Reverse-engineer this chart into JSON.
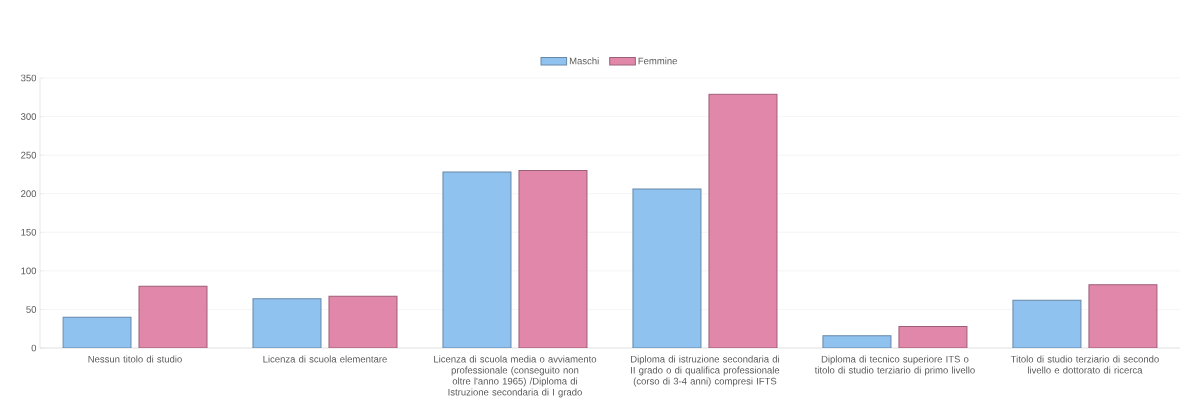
{
  "chart_data": {
    "type": "bar",
    "categories": [
      "Nessun titolo di studio",
      "Licenza di scuola elementare",
      "Licenza di scuola media o avviamento professionale (conseguito non oltre l'anno 1965) /Diploma di Istruzione secondaria di I grado",
      "Diploma di istruzione secondaria di II grado o di qualifica professionale (corso di 3-4 anni) compresi IFTS",
      "Diploma di tecnico superiore ITS o titolo di studio terziario di primo livello",
      "Titolo di studio terziario di secondo livello e dottorato di ricerca"
    ],
    "series": [
      {
        "name": "Maschi",
        "color": "#90c2f0",
        "values": [
          40,
          64,
          228,
          206,
          16,
          62
        ]
      },
      {
        "name": "Femmine",
        "color": "#e087aa",
        "values": [
          80,
          67,
          230,
          329,
          28,
          82
        ]
      }
    ],
    "ylim": [
      0,
      350
    ],
    "yticks": [
      0,
      50,
      100,
      150,
      200,
      250,
      300,
      350
    ],
    "grid": "y",
    "legend": "top"
  }
}
